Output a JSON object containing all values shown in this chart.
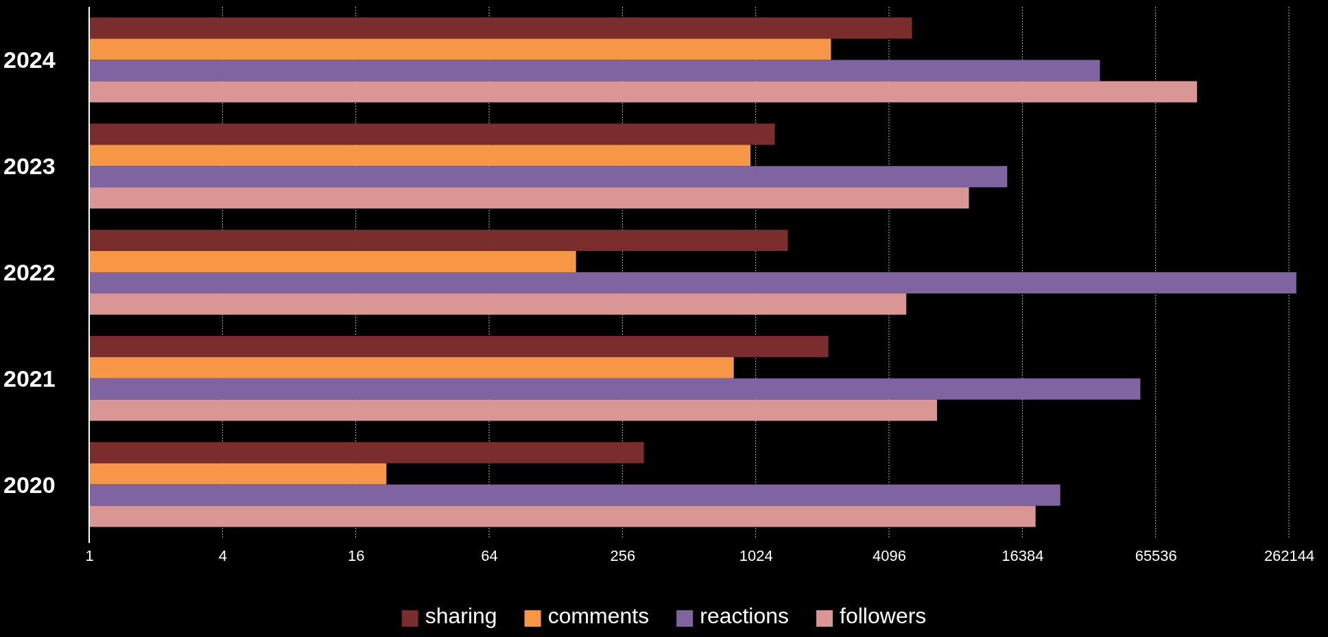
{
  "chart_data": {
    "type": "bar",
    "orientation": "horizontal",
    "log": "x",
    "grid": "x",
    "legend": "bottom",
    "categories": [
      "2024",
      "2023",
      "2022",
      "2021",
      "2020"
    ],
    "series": [
      {
        "name": "sharing",
        "color": "#7b2c2c",
        "values": [
          5200,
          1250,
          1430,
          2180,
          320
        ]
      },
      {
        "name": "comments",
        "color": "#f79646",
        "values": [
          2240,
          970,
          158,
          815,
          22
        ]
      },
      {
        "name": "reactions",
        "color": "#8064a2",
        "values": [
          36700,
          14000,
          283000,
          55900,
          24300
        ]
      },
      {
        "name": "followers",
        "color": "#d99694",
        "values": [
          100700,
          9400,
          4900,
          6750,
          18800
        ]
      }
    ],
    "xlim": [
      1,
      300000
    ],
    "xticks": [
      1,
      4,
      16,
      64,
      256,
      1024,
      4096,
      16384,
      65536,
      262144
    ]
  }
}
